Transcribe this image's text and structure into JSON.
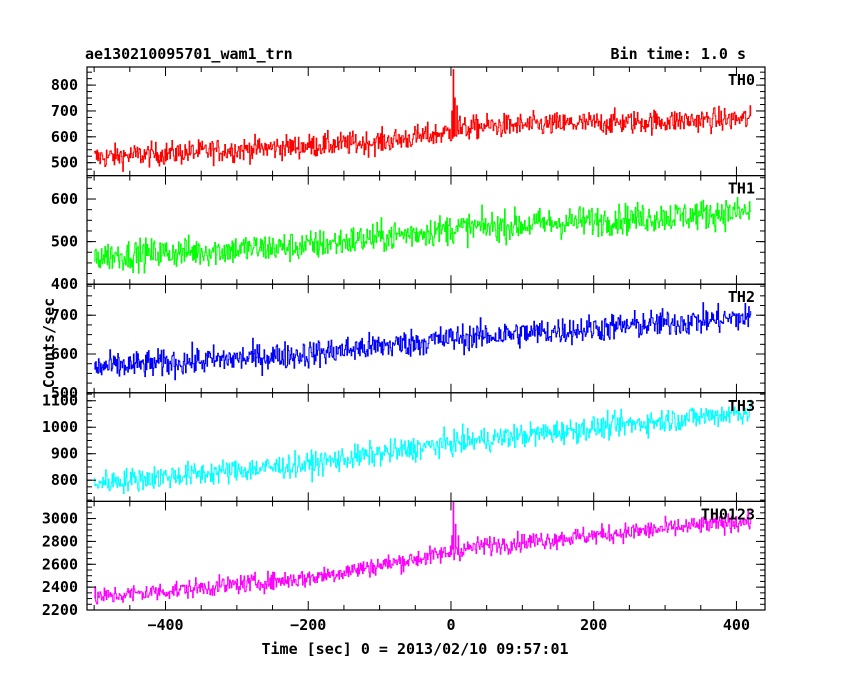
{
  "header": {
    "title": "ae130210095701_wam1_trn",
    "bin_time": "Bin time: 1.0 s"
  },
  "chart_data": {
    "type": "line",
    "xlabel": "Time [sec] 0 = 2013/02/10 09:57:01",
    "ylabel": "Counts/sec",
    "xlim": [
      -510,
      440
    ],
    "x_ticks": [
      -400,
      -200,
      0,
      200,
      400
    ],
    "x_tick_labels": [
      "−400",
      "−200",
      "0",
      "200",
      "400"
    ],
    "x_range": [
      -500,
      420
    ],
    "panels": [
      {
        "name": "TH0",
        "color": "#ff0000",
        "ylim": [
          450,
          870
        ],
        "yticks": [
          500,
          600,
          700,
          800
        ],
        "trend": [
          [
            -500,
            520
          ],
          [
            -100,
            580
          ],
          [
            -20,
            610
          ],
          [
            40,
            640
          ],
          [
            420,
            670
          ]
        ],
        "noise": 45,
        "spikes": [
          [
            1,
            700
          ],
          [
            3,
            860
          ],
          [
            5,
            750
          ],
          [
            8,
            720
          ],
          [
            12,
            680
          ]
        ]
      },
      {
        "name": "TH1",
        "color": "#00ff00",
        "ylim": [
          400,
          655
        ],
        "yticks": [
          400,
          500,
          600
        ],
        "trend": [
          [
            -500,
            465
          ],
          [
            -200,
            490
          ],
          [
            0,
            530
          ],
          [
            420,
            570
          ]
        ],
        "noise": 35,
        "spikes": []
      },
      {
        "name": "TH2",
        "color": "#0000ff",
        "ylim": [
          500,
          780
        ],
        "yticks": [
          500,
          600,
          700
        ],
        "trend": [
          [
            -500,
            565
          ],
          [
            -200,
            600
          ],
          [
            0,
            640
          ],
          [
            420,
            695
          ]
        ],
        "noise": 35,
        "spikes": []
      },
      {
        "name": "TH3",
        "color": "#00ffff",
        "ylim": [
          720,
          1130
        ],
        "yticks": [
          800,
          900,
          1000,
          1100
        ],
        "trend": [
          [
            -500,
            790
          ],
          [
            -200,
            860
          ],
          [
            0,
            940
          ],
          [
            420,
            1060
          ]
        ],
        "noise": 45,
        "spikes": []
      },
      {
        "name": "TH0123",
        "color": "#ff00ff",
        "ylim": [
          2200,
          3150
        ],
        "yticks": [
          2200,
          2400,
          2600,
          2800,
          3000
        ],
        "trend": [
          [
            -500,
            2310
          ],
          [
            -200,
            2480
          ],
          [
            -20,
            2680
          ],
          [
            40,
            2760
          ],
          [
            420,
            2980
          ]
        ],
        "noise": 80,
        "spikes": [
          [
            1,
            2850
          ],
          [
            3,
            3150
          ],
          [
            6,
            2950
          ],
          [
            10,
            2850
          ]
        ]
      }
    ]
  }
}
